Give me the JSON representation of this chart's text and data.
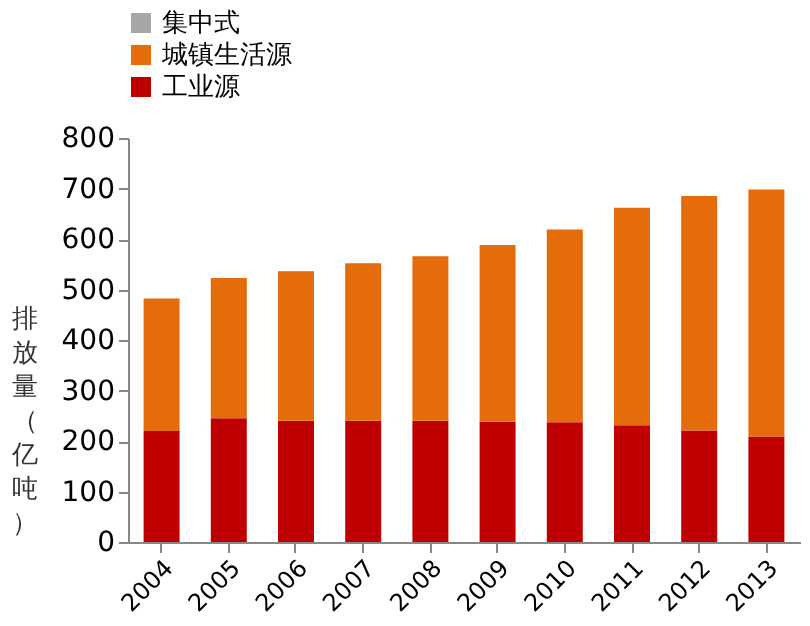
{
  "chart_data": {
    "type": "bar",
    "stacked": true,
    "categories": [
      "2004",
      "2005",
      "2006",
      "2007",
      "2008",
      "2009",
      "2010",
      "2011",
      "2012",
      "2013"
    ],
    "ylabel": "排放量（亿吨）",
    "series": [
      {
        "name": "工业源",
        "color": "#c00000",
        "values": [
          220,
          245,
          240,
          240,
          240,
          238,
          237,
          231,
          221,
          209
        ]
      },
      {
        "name": "城镇生活源",
        "color": "#e46c0a",
        "values": [
          262,
          278,
          296,
          312,
          326,
          350,
          382,
          431,
          464,
          489
        ]
      },
      {
        "name": "集中式",
        "color": "#a6a6a6",
        "values": [
          null,
          null,
          null,
          null,
          null,
          null,
          null,
          null,
          null,
          null
        ]
      }
    ],
    "ylim": [
      0,
      800
    ],
    "yticks": [
      0,
      100,
      200,
      300,
      400,
      500,
      600,
      700,
      800
    ],
    "grid": false,
    "legend": "top"
  }
}
